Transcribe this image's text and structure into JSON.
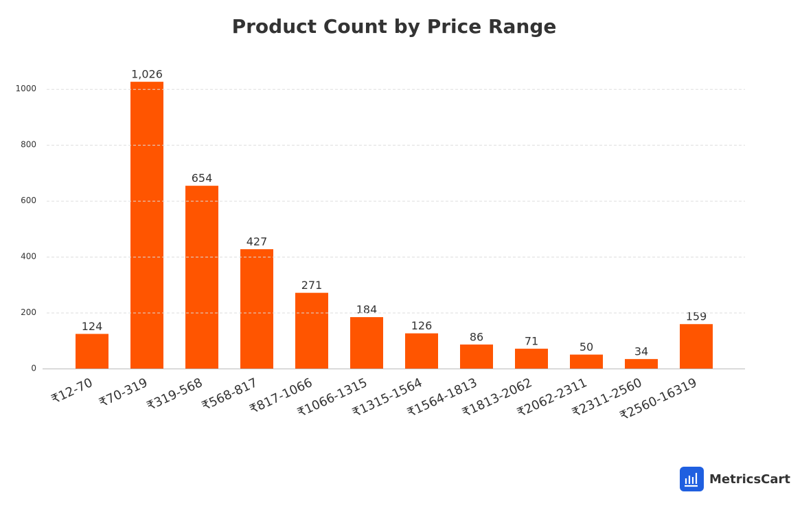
{
  "chart_data": {
    "type": "bar",
    "title": "Product Count by Price Range",
    "categories": [
      "₹12-70",
      "₹70-319",
      "₹319-568",
      "₹568-817",
      "₹817-1066",
      "₹1066-1315",
      "₹1315-1564",
      "₹1564-1813",
      "₹1813-2062",
      "₹2062-2311",
      "₹2311-2560",
      "₹2560-16319"
    ],
    "values": [
      124,
      1026,
      654,
      427,
      271,
      184,
      126,
      86,
      71,
      50,
      34,
      159
    ],
    "value_labels": [
      "124",
      "1,026",
      "654",
      "427",
      "271",
      "184",
      "126",
      "86",
      "71",
      "50",
      "34",
      "159"
    ],
    "color": "#ff5500",
    "ylim": [
      0,
      1100
    ],
    "yticks": [
      0,
      200,
      400,
      600,
      800,
      1000
    ],
    "grid": true,
    "watermark": "MetricsCart"
  }
}
